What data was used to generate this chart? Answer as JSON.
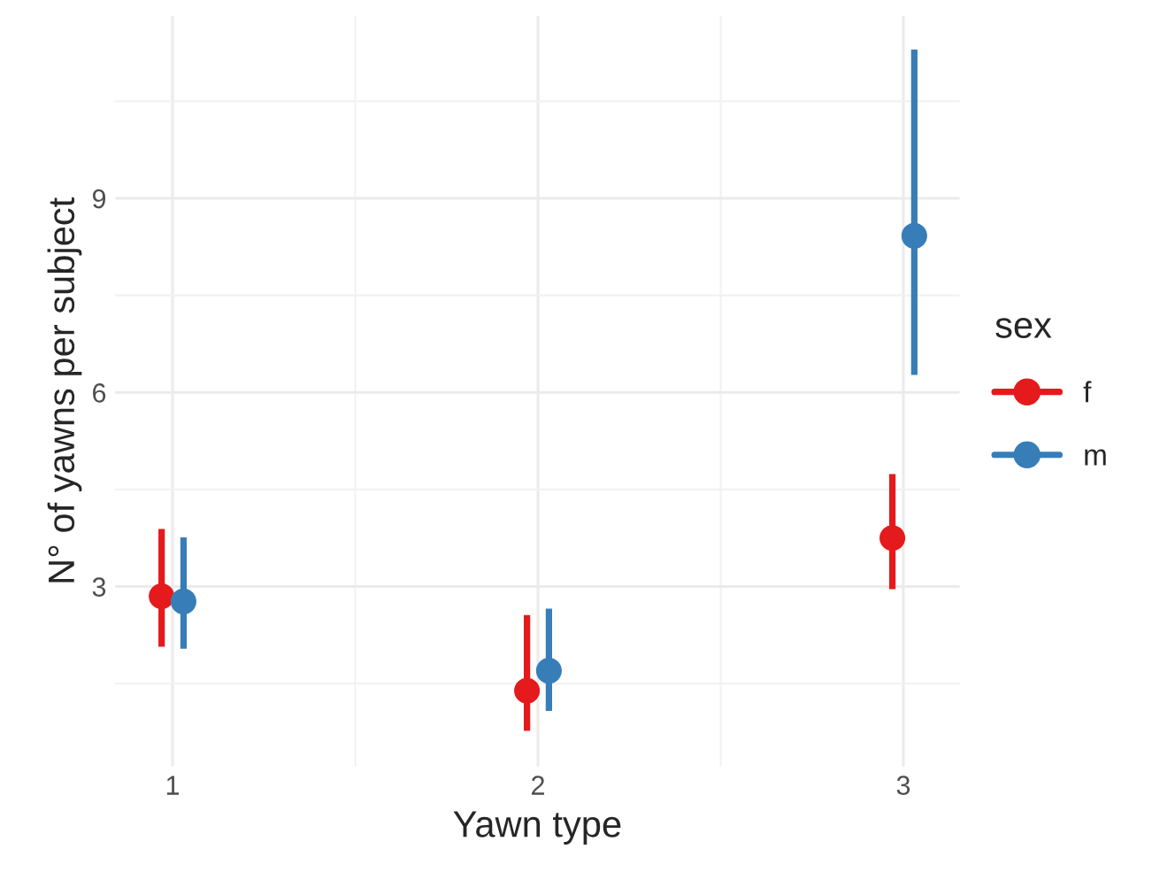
{
  "chart_data": {
    "type": "scatter",
    "xlabel": "Yawn type",
    "ylabel": "N° of yawns per subject",
    "legend_title": "sex",
    "xlim": [
      0.843,
      3.154
    ],
    "xticks": [
      1,
      2,
      3
    ],
    "ylim": [
      0.22,
      11.82
    ],
    "yticks": [
      3,
      6,
      9
    ],
    "grid": true,
    "legend": "right",
    "marker": "circle",
    "series": [
      {
        "name": "f",
        "color": "#e41a1c",
        "x": [
          0.97,
          1.97,
          2.97
        ],
        "values": [
          2.85,
          1.39,
          3.75
        ],
        "errors": [
          [
            2.07,
            3.89
          ],
          [
            0.77,
            2.56
          ],
          [
            2.96,
            4.74
          ]
        ]
      },
      {
        "name": "m",
        "color": "#377eb8",
        "x": [
          1.03,
          2.03,
          3.03
        ],
        "values": [
          2.77,
          1.7,
          8.42
        ],
        "errors": [
          [
            2.04,
            3.76
          ],
          [
            1.08,
            2.66
          ],
          [
            6.27,
            11.3
          ]
        ]
      }
    ]
  }
}
